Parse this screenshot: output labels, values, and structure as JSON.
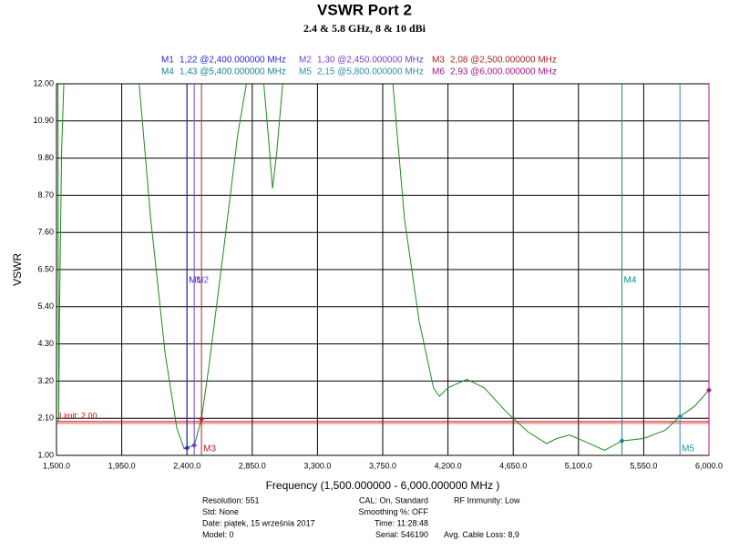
{
  "chart_data": {
    "type": "line",
    "title": "VSWR Port 2",
    "subtitle": "2.4 & 5.8 GHz, 8 & 10 dBi",
    "x_label": "Frequency (1,500.000000 - 6,000.000000 MHz )",
    "y_label": "VSWR",
    "xlim": [
      1500,
      6000
    ],
    "ylim": [
      1,
      12
    ],
    "xticks": [
      {
        "value": 1500,
        "label": "1,500.0"
      },
      {
        "value": 1950,
        "label": "1,950.0"
      },
      {
        "value": 2400,
        "label": "2,400.0"
      },
      {
        "value": 2850,
        "label": "2,850.0"
      },
      {
        "value": 3300,
        "label": "3,300.0"
      },
      {
        "value": 3750,
        "label": "3,750.0"
      },
      {
        "value": 4200,
        "label": "4,200.0"
      },
      {
        "value": 4650,
        "label": "4,650.0"
      },
      {
        "value": 5100,
        "label": "5,100.0"
      },
      {
        "value": 5550,
        "label": "5,550.0"
      },
      {
        "value": 6000,
        "label": "6,000.0"
      }
    ],
    "yticks": [
      {
        "value": 1,
        "label": "1.00"
      },
      {
        "value": 2.1,
        "label": "2.10"
      },
      {
        "value": 3.2,
        "label": "3.20"
      },
      {
        "value": 4.3,
        "label": "4.30"
      },
      {
        "value": 5.4,
        "label": "5.40"
      },
      {
        "value": 6.5,
        "label": "6.50"
      },
      {
        "value": 7.6,
        "label": "7.60"
      },
      {
        "value": 8.7,
        "label": "8.70"
      },
      {
        "value": 9.8,
        "label": "9.80"
      },
      {
        "value": 10.9,
        "label": "10.90"
      },
      {
        "value": 12,
        "label": "12.00"
      }
    ],
    "grid": true,
    "series": [
      {
        "name": "VSWR",
        "color": "#1a8c1a",
        "x": [
          1510,
          1515,
          1520,
          1535,
          1550,
          1600,
          2070,
          2150,
          2250,
          2330,
          2380,
          2400,
          2450,
          2500,
          2550,
          2650,
          2750,
          2810,
          2850,
          2930,
          2960,
          2990,
          3020,
          3060,
          3200,
          3820,
          3900,
          4000,
          4100,
          4140,
          4200,
          4330,
          4450,
          4600,
          4750,
          4880,
          4950,
          5040,
          5150,
          5280,
          5400,
          5550,
          5700,
          5800,
          5900,
          6000
        ],
        "values": [
          12,
          2.0,
          5,
          10,
          12,
          null,
          12,
          8,
          4,
          1.8,
          1.2,
          1.22,
          1.3,
          2.08,
          3.6,
          7,
          10.5,
          12,
          null,
          12,
          10.5,
          8.9,
          10,
          12,
          null,
          12,
          8,
          5,
          3.0,
          2.75,
          3.0,
          3.25,
          3.0,
          2.3,
          1.7,
          1.35,
          1.5,
          1.6,
          1.4,
          1.15,
          1.43,
          1.5,
          1.75,
          2.15,
          2.45,
          2.93
        ]
      }
    ],
    "limit": {
      "value": 2.0,
      "label": "Limit: 2.00",
      "color": "#cc0000"
    },
    "markers": [
      {
        "name": "M1",
        "readout": "1,22 @2,400.000000 MHz",
        "x": 2400,
        "value": 1.22,
        "color": "#2b2bd0"
      },
      {
        "name": "M2",
        "readout": "1,30 @2,450.000000 MHz",
        "x": 2450,
        "value": 1.3,
        "color": "#7a3fd0"
      },
      {
        "name": "M3",
        "readout": "2,08 @2,500.000000 MHz",
        "x": 2500,
        "value": 2.08,
        "color": "#a82424"
      },
      {
        "name": "M4",
        "readout": "1,43 @5,400.000000 MHz",
        "x": 5400,
        "value": 1.43,
        "color": "#108a8a"
      },
      {
        "name": "M5",
        "readout": "2,15 @5,800.000000 MHz",
        "x": 5800,
        "value": 2.15,
        "color": "#2a8fa8"
      },
      {
        "name": "M6",
        "readout": "2,93 @6,000.000000 MHz",
        "x": 6000,
        "value": 2.93,
        "color": "#b0108a"
      }
    ]
  },
  "footer": {
    "col1": [
      "Resolution: 551",
      "Std: None",
      "Date: piątek, 15 września 2017",
      "Model: 0"
    ],
    "col2": [
      "CAL: On, Standard",
      "Smoothing %:  OFF",
      "Time: 11:28:48",
      "Serial: 546190"
    ],
    "col3": [
      "RF Immunity: Low",
      "Avg. Cable Loss: 8,9"
    ]
  }
}
